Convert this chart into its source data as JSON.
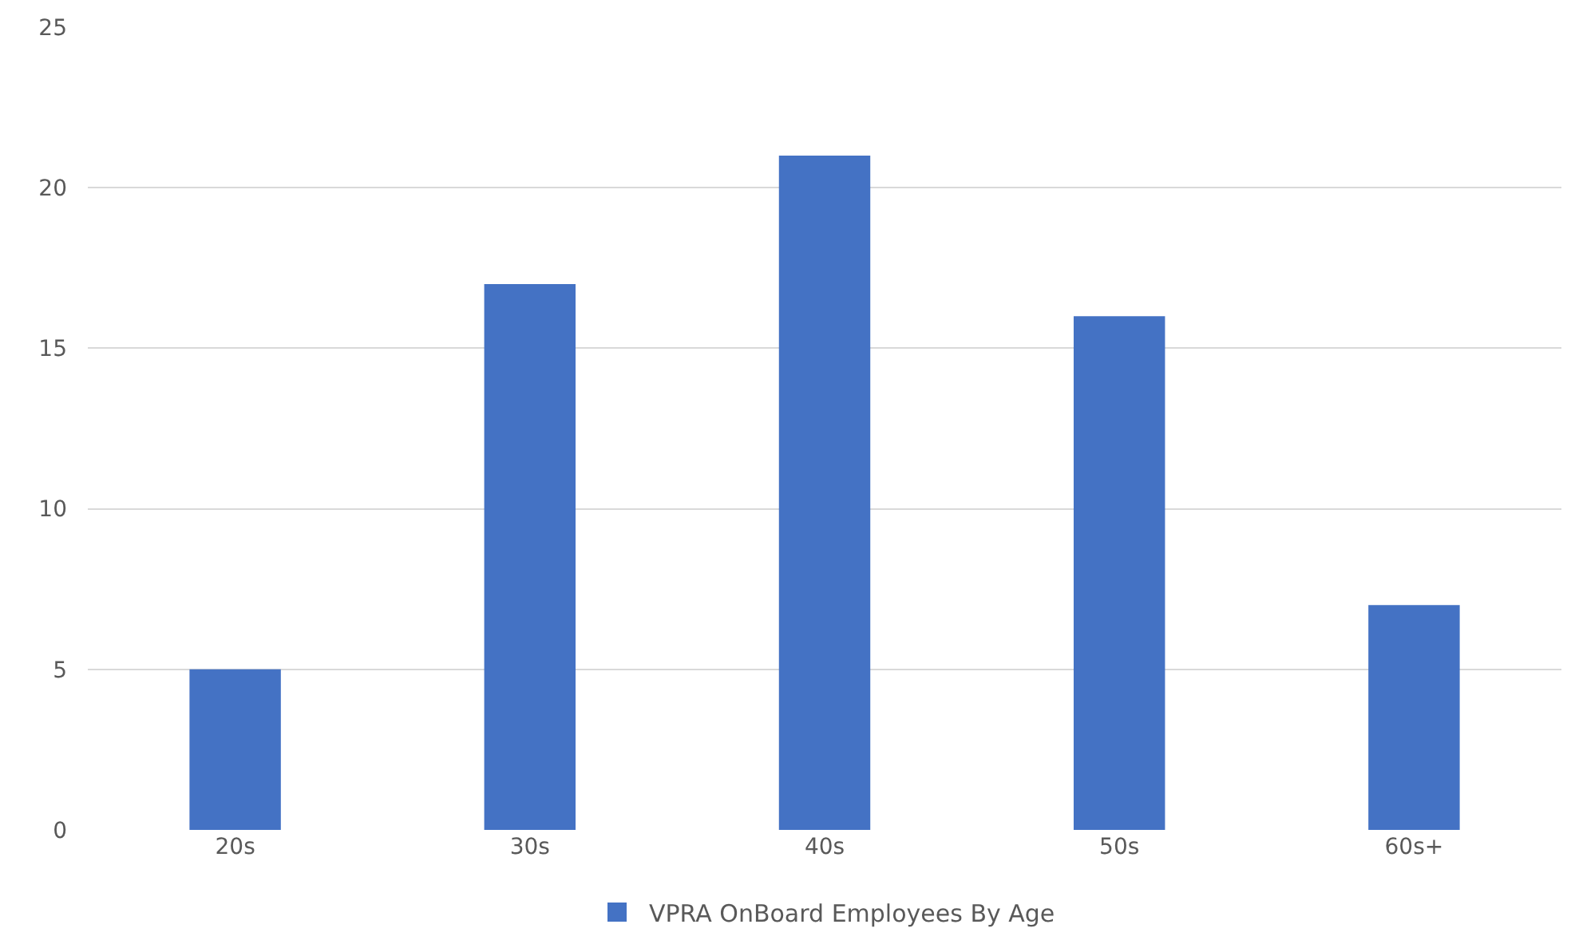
{
  "chart_data": {
    "type": "bar",
    "categories": [
      "20s",
      "30s",
      "40s",
      "50s",
      "60s+"
    ],
    "series": [
      {
        "name": "VPRA OnBoard Employees By Age",
        "color": "#4472c4",
        "values": [
          5,
          17,
          21,
          16,
          7
        ]
      }
    ],
    "ylim": [
      0,
      25
    ],
    "yticks": [
      0,
      5,
      10,
      15,
      20,
      25
    ],
    "grid": "y",
    "legend": "bottom"
  }
}
